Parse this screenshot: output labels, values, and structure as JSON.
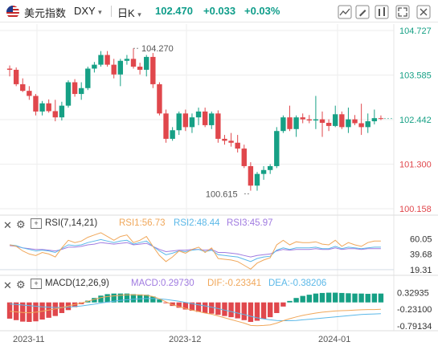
{
  "header": {
    "name": "美元指数",
    "symbol": "DXY",
    "symbol_caret": "▾",
    "period": "日K",
    "period_caret": "▾",
    "price": "102.470",
    "change": "+0.033",
    "change_pct": "+0.03%"
  },
  "indicators": {
    "rsi": {
      "name": "RSI(7,14,21)",
      "rsi1": "RSI1:56.73",
      "rsi2": "RSI2:48.44",
      "rsi3": "RSI3:45.97",
      "ticks": [
        "60.05",
        "39.68",
        "19.31"
      ]
    },
    "macd": {
      "name": "MACD(12,26,9)",
      "macd": "MACD:0.29730",
      "dif": "DIF:-0.23341",
      "dea": "DEA:-0.38206",
      "ticks": [
        "0.32935",
        "-0.23100",
        "-0.79134"
      ]
    }
  },
  "colors": {
    "up": "#16a085",
    "down": "#e0474c",
    "rsi1": "#f0a75a",
    "rsi2": "#5bb8e8",
    "rsi3": "#a07be0",
    "dif": "#f0a75a",
    "dea": "#5bb8e8"
  },
  "chart_data": {
    "type": "candlestick",
    "y_ticks": [
      "104.727",
      "103.585",
      "102.442",
      "101.300",
      "100.158"
    ],
    "ylim": [
      100.158,
      104.727
    ],
    "x_ticks": [
      "2023-11",
      "2023-12",
      "2024-01"
    ],
    "annotations": {
      "high": "104.270",
      "low": "100.615"
    },
    "candles": [
      [
        103.75,
        103.83,
        103.55,
        103.72
      ],
      [
        103.72,
        103.78,
        103.3,
        103.35
      ],
      [
        103.35,
        103.5,
        103.15,
        103.18
      ],
      [
        103.18,
        103.3,
        102.95,
        103.05
      ],
      [
        103.05,
        103.1,
        102.55,
        102.65
      ],
      [
        102.65,
        102.92,
        102.55,
        102.86
      ],
      [
        102.86,
        102.96,
        102.62,
        102.66
      ],
      [
        102.66,
        102.95,
        102.4,
        102.5
      ],
      [
        102.5,
        102.9,
        102.42,
        102.8
      ],
      [
        102.8,
        103.45,
        102.75,
        103.4
      ],
      [
        103.4,
        103.48,
        103.03,
        103.1
      ],
      [
        103.1,
        103.4,
        102.95,
        103.25
      ],
      [
        103.25,
        103.8,
        103.2,
        103.75
      ],
      [
        103.75,
        103.92,
        103.65,
        103.85
      ],
      [
        103.85,
        104.2,
        103.8,
        104.1
      ],
      [
        104.1,
        104.2,
        103.8,
        103.85
      ],
      [
        103.85,
        104.0,
        103.5,
        103.6
      ],
      [
        103.6,
        104.0,
        103.3,
        103.95
      ],
      [
        103.95,
        104.1,
        103.85,
        104.0
      ],
      [
        104.0,
        104.27,
        103.75,
        103.8
      ],
      [
        103.8,
        103.9,
        103.6,
        103.72
      ],
      [
        103.72,
        104.1,
        103.55,
        104.05
      ],
      [
        104.05,
        104.15,
        103.25,
        103.35
      ],
      [
        103.35,
        103.4,
        102.55,
        102.6
      ],
      [
        102.6,
        102.7,
        101.85,
        101.95
      ],
      [
        101.95,
        102.25,
        101.9,
        102.17
      ],
      [
        102.17,
        102.65,
        102.05,
        102.6
      ],
      [
        102.6,
        102.7,
        102.15,
        102.25
      ],
      [
        102.25,
        102.6,
        102.1,
        102.5
      ],
      [
        102.5,
        102.75,
        102.3,
        102.65
      ],
      [
        102.65,
        102.75,
        102.25,
        102.3
      ],
      [
        102.3,
        102.65,
        102.2,
        102.6
      ],
      [
        102.6,
        102.68,
        101.85,
        101.95
      ],
      [
        101.95,
        102.05,
        101.8,
        101.9
      ],
      [
        101.9,
        102.1,
        101.75,
        101.85
      ],
      [
        101.85,
        102.05,
        101.6,
        101.7
      ],
      [
        101.7,
        101.8,
        101.2,
        101.25
      ],
      [
        101.25,
        101.35,
        100.62,
        100.75
      ],
      [
        100.75,
        101.1,
        100.62,
        101.05
      ],
      [
        101.05,
        101.25,
        100.9,
        101.15
      ],
      [
        101.15,
        101.3,
        101.05,
        101.25
      ],
      [
        101.25,
        102.25,
        101.2,
        102.15
      ],
      [
        102.15,
        102.55,
        102.1,
        102.5
      ],
      [
        102.5,
        102.8,
        102.15,
        102.2
      ],
      [
        102.2,
        102.55,
        102.0,
        102.5
      ],
      [
        102.5,
        102.6,
        102.35,
        102.45
      ],
      [
        102.45,
        102.56,
        102.35,
        102.42
      ],
      [
        102.42,
        103.05,
        102.2,
        102.45
      ],
      [
        102.45,
        102.65,
        102.0,
        102.36
      ],
      [
        102.36,
        102.45,
        102.15,
        102.28
      ],
      [
        102.28,
        102.8,
        102.25,
        102.58
      ],
      [
        102.58,
        102.65,
        102.2,
        102.25
      ],
      [
        102.25,
        102.75,
        102.1,
        102.45
      ],
      [
        102.45,
        102.56,
        102.3,
        102.35
      ],
      [
        102.35,
        102.85,
        102.05,
        102.25
      ],
      [
        102.25,
        102.6,
        102.1,
        102.4
      ],
      [
        102.4,
        102.7,
        102.32,
        102.48
      ],
      [
        102.48,
        102.55,
        102.43,
        102.47
      ]
    ],
    "rsi1": [
      52,
      50,
      44,
      40,
      38,
      42,
      40,
      36,
      48,
      58,
      55,
      57,
      62,
      65,
      68,
      63,
      58,
      63,
      65,
      55,
      58,
      63,
      50,
      38,
      30,
      36,
      44,
      41,
      46,
      49,
      42,
      48,
      34,
      33,
      32,
      30,
      25,
      20,
      28,
      32,
      35,
      52,
      58,
      52,
      56,
      55,
      55,
      56,
      53,
      52,
      58,
      50,
      55,
      52,
      50,
      55,
      57,
      57
    ],
    "rsi2": [
      52,
      51,
      48,
      46,
      44,
      45,
      44,
      42,
      47,
      52,
      51,
      52,
      55,
      57,
      59,
      57,
      55,
      57,
      58,
      53,
      55,
      57,
      50,
      44,
      39,
      41,
      44,
      43,
      45,
      46,
      43,
      45,
      39,
      38,
      37,
      36,
      33,
      30,
      34,
      36,
      37,
      45,
      48,
      46,
      48,
      48,
      48,
      49,
      47,
      47,
      50,
      47,
      49,
      48,
      47,
      48,
      49,
      49
    ],
    "rsi3": [
      51,
      50,
      48,
      47,
      46,
      46,
      45,
      44,
      46,
      49,
      49,
      50,
      52,
      53,
      55,
      54,
      53,
      54,
      55,
      52,
      53,
      54,
      50,
      46,
      43,
      44,
      45,
      45,
      46,
      46,
      45,
      46,
      42,
      42,
      41,
      40,
      38,
      36,
      38,
      39,
      40,
      44,
      46,
      45,
      46,
      46,
      46,
      47,
      46,
      46,
      48,
      46,
      47,
      47,
      46,
      47,
      47,
      47
    ],
    "macd_hist": [
      -0.55,
      -0.6,
      -0.65,
      -0.66,
      -0.64,
      -0.58,
      -0.52,
      -0.46,
      -0.36,
      -0.26,
      -0.16,
      -0.06,
      0.06,
      0.15,
      0.23,
      0.28,
      0.3,
      0.3,
      0.3,
      0.28,
      0.27,
      0.26,
      0.2,
      0.1,
      -0.02,
      -0.12,
      -0.18,
      -0.24,
      -0.28,
      -0.32,
      -0.36,
      -0.38,
      -0.42,
      -0.46,
      -0.5,
      -0.54,
      -0.6,
      -0.66,
      -0.62,
      -0.56,
      -0.5,
      -0.36,
      -0.14,
      0.05,
      0.15,
      0.22,
      0.26,
      0.3,
      0.32,
      0.33,
      0.33,
      0.32,
      0.31,
      0.3,
      0.3,
      0.29,
      0.3,
      0.3
    ],
    "dif": [
      -0.3,
      -0.32,
      -0.34,
      -0.35,
      -0.33,
      -0.3,
      -0.26,
      -0.22,
      -0.18,
      -0.12,
      -0.07,
      -0.02,
      0.04,
      0.1,
      0.16,
      0.2,
      0.22,
      0.24,
      0.26,
      0.26,
      0.25,
      0.24,
      0.2,
      0.12,
      0.02,
      -0.08,
      -0.14,
      -0.2,
      -0.26,
      -0.31,
      -0.36,
      -0.4,
      -0.46,
      -0.52,
      -0.58,
      -0.64,
      -0.7,
      -0.78,
      -0.79,
      -0.78,
      -0.76,
      -0.7,
      -0.62,
      -0.55,
      -0.49,
      -0.44,
      -0.4,
      -0.36,
      -0.33,
      -0.31,
      -0.29,
      -0.28,
      -0.27,
      -0.26,
      -0.25,
      -0.24,
      -0.24,
      -0.23
    ],
    "dea": [
      -0.05,
      -0.07,
      -0.09,
      -0.11,
      -0.13,
      -0.15,
      -0.16,
      -0.17,
      -0.17,
      -0.16,
      -0.14,
      -0.12,
      -0.09,
      -0.06,
      -0.02,
      0.01,
      0.04,
      0.07,
      0.09,
      0.11,
      0.12,
      0.13,
      0.13,
      0.12,
      0.1,
      0.07,
      0.04,
      0.0,
      -0.04,
      -0.08,
      -0.12,
      -0.16,
      -0.21,
      -0.26,
      -0.31,
      -0.36,
      -0.41,
      -0.47,
      -0.52,
      -0.56,
      -0.59,
      -0.61,
      -0.62,
      -0.62,
      -0.61,
      -0.59,
      -0.57,
      -0.55,
      -0.53,
      -0.51,
      -0.49,
      -0.47,
      -0.45,
      -0.43,
      -0.41,
      -0.4,
      -0.39,
      -0.38
    ]
  }
}
